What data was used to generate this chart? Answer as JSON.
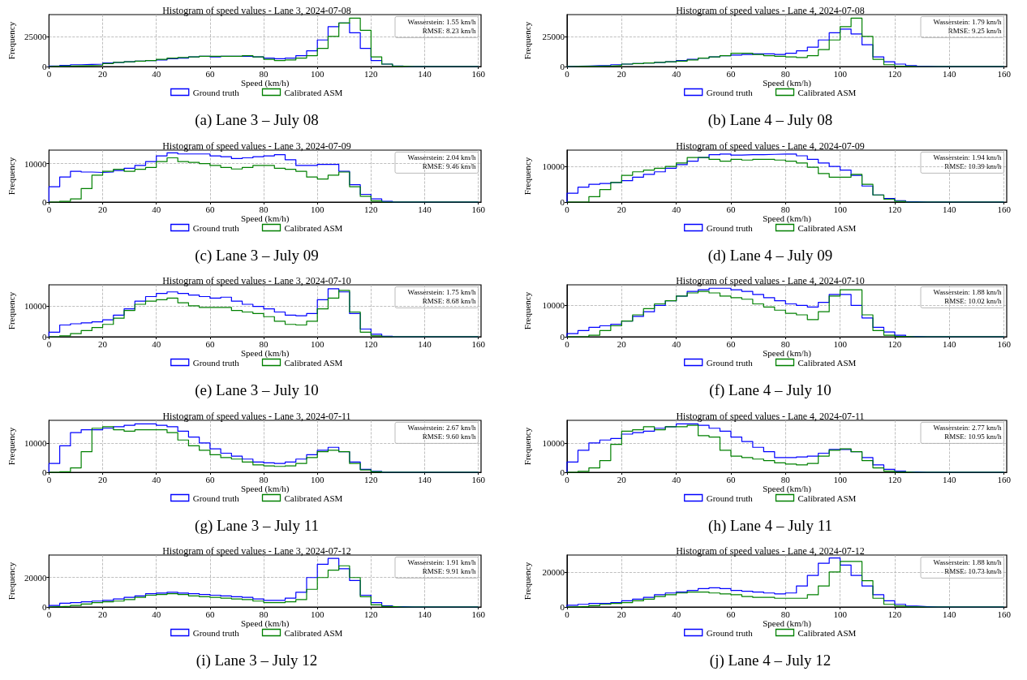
{
  "chart_data": [
    {
      "type": "histogram",
      "title": "Histogram of speed values - Lane 3, 2024-07-08",
      "xlabel": "Speed (km/h)",
      "ylabel": "Frequency",
      "bins": [
        0,
        4,
        8,
        12,
        16,
        20,
        24,
        28,
        32,
        36,
        40,
        44,
        48,
        52,
        56,
        60,
        64,
        68,
        72,
        76,
        80,
        84,
        88,
        92,
        96,
        100,
        104,
        108,
        112,
        116,
        120,
        124,
        128,
        132,
        136,
        140,
        144,
        148,
        152,
        156,
        160
      ],
      "xlim": [
        0,
        161
      ],
      "ylim": [
        0,
        43000
      ],
      "xticks": [
        0,
        20,
        40,
        60,
        80,
        100,
        120,
        140,
        160
      ],
      "yticks": [
        0,
        25000
      ],
      "grid": true,
      "legend": "bottom",
      "annotations": [
        "Wasserstein: 1.55 km/h",
        "RMSE: 8.23 km/h",
        "(a) Lane 3 – July 08"
      ],
      "series": [
        {
          "name": "Ground truth",
          "color": "#0000ff",
          "values": [
            500,
            1000,
            1500,
            1700,
            2000,
            3000,
            3500,
            4000,
            4500,
            5000,
            5500,
            6500,
            7000,
            8000,
            8500,
            8000,
            8500,
            8500,
            8500,
            8000,
            7000,
            6500,
            7000,
            9000,
            13000,
            22000,
            33000,
            36000,
            28000,
            15000,
            5000,
            2000,
            500,
            0,
            0,
            0,
            0,
            0,
            0,
            0
          ]
        },
        {
          "name": "Calibrated ASM",
          "color": "#008000",
          "values": [
            200,
            400,
            600,
            800,
            1000,
            2500,
            3500,
            4000,
            4500,
            5000,
            6000,
            7000,
            7500,
            8000,
            8500,
            8500,
            8500,
            8500,
            9000,
            8000,
            6000,
            5000,
            5500,
            7000,
            9000,
            15000,
            25000,
            36000,
            40000,
            30000,
            8000,
            2000,
            300,
            0,
            0,
            0,
            0,
            0,
            0,
            0
          ]
        }
      ]
    },
    {
      "type": "histogram",
      "title": "Histogram of speed values - Lane 4, 2024-07-08",
      "xlabel": "Speed (km/h)",
      "ylabel": "Frequency",
      "bins": [
        0,
        4,
        8,
        12,
        16,
        20,
        24,
        28,
        32,
        36,
        40,
        44,
        48,
        52,
        56,
        60,
        64,
        68,
        72,
        76,
        80,
        84,
        88,
        92,
        96,
        100,
        104,
        108,
        112,
        116,
        120,
        124,
        128,
        132,
        136,
        140,
        144,
        148,
        152,
        156,
        160
      ],
      "xlim": [
        0,
        161
      ],
      "ylim": [
        0,
        43000
      ],
      "xticks": [
        0,
        20,
        40,
        60,
        80,
        100,
        120,
        140,
        160
      ],
      "yticks": [
        0,
        25000
      ],
      "grid": true,
      "legend": "bottom",
      "annotations": [
        "Wasserstein: 1.79 km/h",
        "RMSE: 9.25 km/h",
        "(b) Lane 4 – July 08"
      ],
      "series": [
        {
          "name": "Ground truth",
          "color": "#0000ff",
          "values": [
            300,
            500,
            800,
            1000,
            1500,
            2000,
            2500,
            3000,
            3500,
            4000,
            5000,
            6000,
            7000,
            8000,
            9000,
            9500,
            10000,
            10500,
            10500,
            10000,
            11000,
            13000,
            16000,
            22000,
            28000,
            31000,
            27000,
            18000,
            8000,
            4000,
            2000,
            800,
            200,
            0,
            0,
            0,
            0,
            0,
            0,
            0
          ]
        },
        {
          "name": "Calibrated ASM",
          "color": "#008000",
          "values": [
            100,
            200,
            300,
            500,
            800,
            2000,
            2500,
            3000,
            3500,
            4000,
            4500,
            5500,
            7000,
            8000,
            9000,
            11000,
            11000,
            10000,
            9000,
            8500,
            8000,
            7500,
            9000,
            14000,
            22000,
            33000,
            40000,
            25000,
            6000,
            1500,
            300,
            0,
            0,
            0,
            0,
            0,
            0,
            0,
            0,
            0
          ]
        }
      ]
    },
    {
      "type": "histogram",
      "title": "Histogram of speed values - Lane 3, 2024-07-09",
      "xlabel": "Speed (km/h)",
      "ylabel": "Frequency",
      "bins": [
        0,
        4,
        8,
        12,
        16,
        20,
        24,
        28,
        32,
        36,
        40,
        44,
        48,
        52,
        56,
        60,
        64,
        68,
        72,
        76,
        80,
        84,
        88,
        92,
        96,
        100,
        104,
        108,
        112,
        116,
        120,
        124,
        128,
        132,
        136,
        140,
        144,
        148,
        152,
        156,
        160
      ],
      "xlim": [
        0,
        161
      ],
      "ylim": [
        0,
        13500
      ],
      "xticks": [
        0,
        20,
        40,
        60,
        80,
        100,
        120,
        140,
        160
      ],
      "yticks": [
        0,
        10000
      ],
      "grid": true,
      "legend": "bottom",
      "annotations": [
        "Wasserstein: 2.04 km/h",
        "RMSE: 9.46 km/h",
        "(c) Lane 3 – July 09"
      ],
      "series": [
        {
          "name": "Ground truth",
          "color": "#0000ff",
          "values": [
            4000,
            6500,
            8000,
            7800,
            7700,
            7800,
            8200,
            8800,
            9500,
            10500,
            12000,
            12800,
            12500,
            12500,
            12500,
            12000,
            11800,
            11300,
            11500,
            11800,
            12000,
            12300,
            11000,
            9500,
            9500,
            9800,
            9800,
            8000,
            4500,
            2000,
            800,
            200,
            0,
            0,
            0,
            0,
            0,
            0,
            0,
            0
          ]
        },
        {
          "name": "Calibrated ASM",
          "color": "#008000",
          "values": [
            0,
            200,
            800,
            3500,
            7000,
            8000,
            8500,
            8000,
            8500,
            9000,
            10500,
            11500,
            10500,
            10300,
            10000,
            9500,
            9000,
            8600,
            9000,
            9500,
            9500,
            8800,
            8500,
            8000,
            6500,
            6000,
            7000,
            7800,
            4000,
            1500,
            300,
            0,
            0,
            0,
            0,
            0,
            0,
            0,
            0,
            0
          ]
        }
      ]
    },
    {
      "type": "histogram",
      "title": "Histogram of speed values - Lane 4, 2024-07-09",
      "xlabel": "Speed (km/h)",
      "ylabel": "Frequency",
      "bins": [
        0,
        4,
        8,
        12,
        16,
        20,
        24,
        28,
        32,
        36,
        40,
        44,
        48,
        52,
        56,
        60,
        64,
        68,
        72,
        76,
        80,
        84,
        88,
        92,
        96,
        100,
        104,
        108,
        112,
        116,
        120,
        124,
        128,
        132,
        136,
        140,
        144,
        148,
        152,
        156,
        160
      ],
      "xlim": [
        0,
        161
      ],
      "ylim": [
        0,
        14600
      ],
      "xticks": [
        0,
        20,
        40,
        60,
        80,
        100,
        120,
        140,
        160
      ],
      "yticks": [
        0,
        10000
      ],
      "grid": true,
      "legend": "bottom",
      "annotations": [
        "Wasserstein: 1.94 km/h",
        "RMSE: 10.39 km/h",
        "(d) Lane 4 – July 09"
      ],
      "series": [
        {
          "name": "Ground truth",
          "color": "#0000ff",
          "values": [
            2500,
            4200,
            5000,
            5200,
            5500,
            6000,
            7000,
            7800,
            8500,
            9500,
            10500,
            11500,
            12500,
            13300,
            13500,
            13200,
            13300,
            13300,
            13400,
            13500,
            13500,
            13000,
            12000,
            11000,
            10000,
            9000,
            7500,
            4500,
            2000,
            1000,
            400,
            100,
            0,
            0,
            0,
            0,
            0,
            0,
            0,
            0
          ]
        },
        {
          "name": "Calibrated ASM",
          "color": "#008000",
          "values": [
            0,
            0,
            1500,
            3500,
            5500,
            7500,
            8500,
            9000,
            9500,
            10000,
            11000,
            12500,
            12500,
            12000,
            11500,
            12000,
            11800,
            12000,
            12000,
            11800,
            11500,
            11000,
            9800,
            8000,
            7000,
            7000,
            7800,
            5000,
            2000,
            800,
            200,
            0,
            0,
            0,
            0,
            0,
            0,
            0,
            0,
            0
          ]
        }
      ]
    },
    {
      "type": "histogram",
      "title": "Histogram of speed values - Lane 3, 2024-07-10",
      "xlabel": "Speed (km/h)",
      "ylabel": "Frequency",
      "bins": [
        0,
        4,
        8,
        12,
        16,
        20,
        24,
        28,
        32,
        36,
        40,
        44,
        48,
        52,
        56,
        60,
        64,
        68,
        72,
        76,
        80,
        84,
        88,
        92,
        96,
        100,
        104,
        108,
        112,
        116,
        120,
        124,
        128,
        132,
        136,
        140,
        144,
        148,
        152,
        156,
        160
      ],
      "xlim": [
        0,
        161
      ],
      "ylim": [
        0,
        16800
      ],
      "xticks": [
        0,
        20,
        40,
        60,
        80,
        100,
        120,
        140,
        160
      ],
      "yticks": [
        0,
        10000
      ],
      "grid": true,
      "legend": "bottom",
      "annotations": [
        "Wasserstein: 1.75 km/h",
        "RMSE: 8.68 km/h",
        "(e) Lane 3 – July 10"
      ],
      "series": [
        {
          "name": "Ground truth",
          "color": "#0000ff",
          "values": [
            1500,
            3800,
            4200,
            4500,
            4800,
            5500,
            7000,
            9000,
            11500,
            13000,
            14000,
            14500,
            14000,
            13500,
            13000,
            12500,
            12800,
            11500,
            10500,
            9800,
            9000,
            8000,
            7000,
            6800,
            7500,
            12000,
            15500,
            14500,
            7500,
            2500,
            800,
            200,
            0,
            0,
            0,
            0,
            0,
            0,
            0,
            0
          ]
        },
        {
          "name": "Calibrated ASM",
          "color": "#008000",
          "values": [
            0,
            300,
            1000,
            2000,
            3000,
            4000,
            6000,
            8500,
            10500,
            11500,
            12000,
            12500,
            11000,
            10000,
            9500,
            9500,
            9500,
            8500,
            8000,
            7500,
            6500,
            5000,
            4000,
            3800,
            5000,
            9000,
            12500,
            15000,
            8000,
            1500,
            300,
            0,
            0,
            0,
            0,
            0,
            0,
            0,
            0,
            0
          ]
        }
      ]
    },
    {
      "type": "histogram",
      "title": "Histogram of speed values - Lane 4, 2024-07-10",
      "xlabel": "Speed (km/h)",
      "ylabel": "Frequency",
      "bins": [
        0,
        4,
        8,
        12,
        16,
        20,
        24,
        28,
        32,
        36,
        40,
        44,
        48,
        52,
        56,
        60,
        64,
        68,
        72,
        76,
        80,
        84,
        88,
        92,
        96,
        100,
        104,
        108,
        112,
        116,
        120,
        124,
        128,
        132,
        136,
        140,
        144,
        148,
        152,
        156,
        160
      ],
      "xlim": [
        0,
        161
      ],
      "ylim": [
        0,
        16600
      ],
      "xticks": [
        0,
        20,
        40,
        60,
        80,
        100,
        120,
        140,
        160
      ],
      "yticks": [
        0,
        10000
      ],
      "grid": true,
      "legend": "bottom",
      "annotations": [
        "Wasserstein: 1.88 km/h",
        "RMSE: 10.02 km/h",
        "(f) Lane 4 – July 10"
      ],
      "series": [
        {
          "name": "Ground truth",
          "color": "#0000ff",
          "values": [
            1000,
            2000,
            3000,
            3500,
            4000,
            5000,
            6500,
            8000,
            10000,
            11500,
            13000,
            14500,
            15000,
            15500,
            15500,
            15000,
            14500,
            13500,
            12500,
            11500,
            10500,
            10000,
            9500,
            11000,
            13500,
            13500,
            10000,
            6000,
            3000,
            1500,
            500,
            100,
            0,
            0,
            0,
            0,
            0,
            0,
            0,
            0
          ]
        },
        {
          "name": "Calibrated ASM",
          "color": "#008000",
          "values": [
            0,
            0,
            500,
            2000,
            3500,
            5000,
            7000,
            9000,
            10500,
            11500,
            13000,
            14000,
            14500,
            14000,
            13000,
            12500,
            12000,
            10500,
            9500,
            8500,
            7500,
            7000,
            5500,
            8000,
            13000,
            15000,
            15000,
            7000,
            2000,
            500,
            100,
            0,
            0,
            0,
            0,
            0,
            0,
            0,
            0,
            0
          ]
        }
      ]
    },
    {
      "type": "histogram",
      "title": "Histogram of speed values - Lane 3, 2024-07-11",
      "xlabel": "Speed (km/h)",
      "ylabel": "Frequency",
      "bins": [
        0,
        4,
        8,
        12,
        16,
        20,
        24,
        28,
        32,
        36,
        40,
        44,
        48,
        52,
        56,
        60,
        64,
        68,
        72,
        76,
        80,
        84,
        88,
        92,
        96,
        100,
        104,
        108,
        112,
        116,
        120,
        124,
        128,
        132,
        136,
        140,
        144,
        148,
        152,
        156,
        160
      ],
      "xlim": [
        0,
        161
      ],
      "ylim": [
        0,
        17700
      ],
      "xticks": [
        0,
        20,
        40,
        60,
        80,
        100,
        120,
        140,
        160
      ],
      "yticks": [
        0,
        10000
      ],
      "grid": true,
      "legend": "bottom",
      "annotations": [
        "Wasserstein: 2.67 km/h",
        "RMSE: 9.60 km/h",
        "(g) Lane 3 – July 11"
      ],
      "series": [
        {
          "name": "Ground truth",
          "color": "#0000ff",
          "values": [
            3000,
            9000,
            13500,
            14500,
            14500,
            15000,
            15500,
            16000,
            16500,
            16500,
            16000,
            15500,
            14000,
            12000,
            10000,
            8000,
            6500,
            5500,
            4500,
            3500,
            3200,
            3000,
            3500,
            4500,
            6000,
            7500,
            8500,
            7000,
            3500,
            1000,
            300,
            0,
            0,
            0,
            0,
            0,
            0,
            0,
            0,
            0
          ]
        },
        {
          "name": "Calibrated ASM",
          "color": "#008000",
          "values": [
            0,
            200,
            1500,
            7000,
            15000,
            15500,
            14500,
            14000,
            14500,
            14500,
            14500,
            13500,
            11000,
            9000,
            7500,
            6000,
            5000,
            4500,
            3500,
            2500,
            2200,
            2000,
            2200,
            3000,
            5000,
            7000,
            7500,
            7000,
            3000,
            800,
            200,
            0,
            0,
            0,
            0,
            0,
            0,
            0,
            0,
            0
          ]
        }
      ]
    },
    {
      "type": "histogram",
      "title": "Histogram of speed values - Lane 4, 2024-07-11",
      "xlabel": "Speed (km/h)",
      "ylabel": "Frequency",
      "bins": [
        0,
        4,
        8,
        12,
        16,
        20,
        24,
        28,
        32,
        36,
        40,
        44,
        48,
        52,
        56,
        60,
        64,
        68,
        72,
        76,
        80,
        84,
        88,
        92,
        96,
        100,
        104,
        108,
        112,
        116,
        120,
        124,
        128,
        132,
        136,
        140,
        144,
        148,
        152,
        156,
        160
      ],
      "xlim": [
        0,
        161
      ],
      "ylim": [
        0,
        17700
      ],
      "xticks": [
        0,
        20,
        40,
        60,
        80,
        100,
        120,
        140,
        160
      ],
      "yticks": [
        0,
        10000
      ],
      "grid": true,
      "legend": "bottom",
      "annotations": [
        "Wasserstein: 2.77 km/h",
        "RMSE: 10.95 km/h",
        "(h) Lane 4 – July 11"
      ],
      "series": [
        {
          "name": "Ground truth",
          "color": "#0000ff",
          "values": [
            3500,
            7500,
            10000,
            11000,
            11500,
            13000,
            13500,
            14000,
            15000,
            15500,
            16500,
            16500,
            16000,
            15000,
            14000,
            12000,
            10500,
            8500,
            7000,
            5000,
            5000,
            5200,
            5500,
            6500,
            7800,
            7800,
            7000,
            5000,
            2500,
            1000,
            400,
            100,
            0,
            0,
            0,
            0,
            0,
            0,
            0,
            0
          ]
        },
        {
          "name": "Calibrated ASM",
          "color": "#008000",
          "values": [
            0,
            300,
            1500,
            4000,
            9500,
            14000,
            14500,
            15500,
            14500,
            15500,
            15500,
            16000,
            12500,
            12000,
            7500,
            5500,
            5000,
            4500,
            4000,
            3200,
            2800,
            2500,
            3000,
            5500,
            7500,
            8000,
            7000,
            4000,
            1500,
            400,
            100,
            0,
            0,
            0,
            0,
            0,
            0,
            0,
            0,
            0
          ]
        }
      ]
    },
    {
      "type": "histogram",
      "title": "Histogram of speed values - Lane 3, 2024-07-12",
      "xlabel": "Speed (km/h)",
      "ylabel": "Frequency",
      "bins": [
        0,
        4,
        8,
        12,
        16,
        20,
        24,
        28,
        32,
        36,
        40,
        44,
        48,
        52,
        56,
        60,
        64,
        68,
        72,
        76,
        80,
        84,
        88,
        92,
        96,
        100,
        104,
        108,
        112,
        116,
        120,
        124,
        128,
        132,
        136,
        140,
        144,
        148,
        152,
        156,
        160
      ],
      "xlim": [
        0,
        161
      ],
      "ylim": [
        0,
        35300
      ],
      "xticks": [
        0,
        20,
        40,
        60,
        80,
        100,
        120,
        140,
        160
      ],
      "yticks": [
        0,
        20000
      ],
      "grid": true,
      "legend": "bottom",
      "annotations": [
        "Wasserstein: 1.91 km/h",
        "RMSE: 9.91 km/h",
        "(i) Lane 3 – July 12"
      ],
      "series": [
        {
          "name": "Ground truth",
          "color": "#0000ff",
          "values": [
            1000,
            2500,
            3000,
            3500,
            4000,
            4500,
            5500,
            6500,
            7500,
            9000,
            9500,
            10000,
            9500,
            9000,
            8500,
            8000,
            7500,
            7000,
            6500,
            5500,
            4500,
            4500,
            6000,
            10000,
            20000,
            29000,
            33000,
            26000,
            18000,
            8000,
            3000,
            800,
            200,
            0,
            0,
            0,
            0,
            0,
            0,
            0
          ]
        },
        {
          "name": "Calibrated ASM",
          "color": "#008000",
          "values": [
            200,
            500,
            1000,
            2000,
            3000,
            3500,
            4000,
            5000,
            6500,
            8000,
            8500,
            9000,
            8500,
            7500,
            7000,
            6500,
            6000,
            5500,
            5000,
            4000,
            3000,
            3000,
            3500,
            5000,
            12000,
            20000,
            25000,
            28000,
            20000,
            7000,
            1500,
            300,
            0,
            0,
            0,
            0,
            0,
            0,
            0,
            0
          ]
        }
      ]
    },
    {
      "type": "histogram",
      "title": "Histogram of speed values - Lane 4, 2024-07-12",
      "xlabel": "Speed (km/h)",
      "ylabel": "Frequency",
      "bins": [
        0,
        4,
        8,
        12,
        16,
        20,
        24,
        28,
        32,
        36,
        40,
        44,
        48,
        52,
        56,
        60,
        64,
        68,
        72,
        76,
        80,
        84,
        88,
        92,
        96,
        100,
        104,
        108,
        112,
        116,
        120,
        124,
        128,
        132,
        136,
        140,
        144,
        148,
        152,
        156,
        160
      ],
      "xlim": [
        0,
        161
      ],
      "ylim": [
        0,
        29700
      ],
      "xticks": [
        0,
        20,
        40,
        60,
        80,
        100,
        120,
        140,
        160
      ],
      "yticks": [
        0,
        20000
      ],
      "grid": true,
      "legend": "bottom",
      "annotations": [
        "Wasserstein: 1.88 km/h",
        "RMSE: 10.73 km/h",
        "(j) Lane 4 – July 12"
      ],
      "series": [
        {
          "name": "Ground truth",
          "color": "#0000ff",
          "values": [
            1000,
            1500,
            2000,
            2000,
            2500,
            3500,
            4500,
            5500,
            7000,
            8000,
            8500,
            9500,
            10500,
            11000,
            10500,
            9500,
            9000,
            8500,
            8000,
            7500,
            8000,
            12000,
            18000,
            25000,
            28000,
            24000,
            18000,
            12000,
            7000,
            3500,
            1500,
            500,
            200,
            0,
            0,
            0,
            0,
            0,
            0,
            0
          ]
        },
        {
          "name": "Calibrated ASM",
          "color": "#008000",
          "values": [
            100,
            300,
            800,
            1500,
            2000,
            2500,
            3500,
            4500,
            6000,
            7000,
            8000,
            8500,
            8500,
            8000,
            7500,
            7000,
            6000,
            5500,
            5500,
            5000,
            5000,
            5000,
            7000,
            12000,
            20000,
            26000,
            26000,
            15000,
            5000,
            1500,
            500,
            100,
            0,
            0,
            0,
            0,
            0,
            0,
            0,
            0
          ]
        }
      ]
    }
  ]
}
